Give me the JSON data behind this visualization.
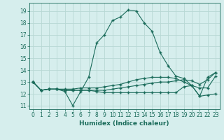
{
  "xlabel": "Humidex (Indice chaleur)",
  "bg_color": "#d6eeed",
  "grid_color": "#b8d8d4",
  "line_color": "#1a6b5a",
  "xlim": [
    -0.5,
    23.5
  ],
  "ylim": [
    10.7,
    19.7
  ],
  "yticks": [
    11,
    12,
    13,
    14,
    15,
    16,
    17,
    18,
    19
  ],
  "xticks": [
    0,
    1,
    2,
    3,
    4,
    5,
    6,
    7,
    8,
    9,
    10,
    11,
    12,
    13,
    14,
    15,
    16,
    17,
    18,
    19,
    20,
    21,
    22,
    23
  ],
  "line1_x": [
    0,
    1,
    2,
    3,
    4,
    5,
    6,
    7,
    8,
    9,
    10,
    11,
    12,
    13,
    14,
    15,
    16,
    17,
    18,
    19,
    20,
    21,
    22,
    23
  ],
  "line1_y": [
    13.0,
    12.3,
    12.4,
    12.4,
    12.2,
    11.0,
    12.2,
    13.4,
    16.3,
    17.0,
    18.2,
    18.5,
    19.1,
    19.0,
    18.0,
    17.3,
    15.5,
    14.4,
    13.5,
    13.3,
    12.7,
    11.8,
    13.4,
    13.8
  ],
  "line2_x": [
    0,
    1,
    2,
    3,
    4,
    5,
    6,
    7,
    8,
    9,
    10,
    11,
    12,
    13,
    14,
    15,
    16,
    17,
    18,
    19,
    20,
    21,
    22,
    23
  ],
  "line2_y": [
    13.0,
    12.3,
    12.4,
    12.4,
    12.4,
    12.4,
    12.5,
    12.5,
    12.5,
    12.6,
    12.7,
    12.8,
    13.0,
    13.2,
    13.3,
    13.4,
    13.4,
    13.4,
    13.3,
    13.0,
    12.7,
    12.5,
    12.5,
    13.5
  ],
  "line3_x": [
    0,
    1,
    2,
    3,
    4,
    5,
    6,
    7,
    8,
    9,
    10,
    11,
    12,
    13,
    14,
    15,
    16,
    17,
    18,
    19,
    20,
    21,
    22,
    23
  ],
  "line3_y": [
    13.0,
    12.3,
    12.4,
    12.4,
    12.3,
    12.3,
    12.3,
    12.3,
    12.3,
    12.3,
    12.4,
    12.5,
    12.6,
    12.7,
    12.8,
    12.9,
    13.0,
    13.0,
    13.1,
    13.2,
    13.1,
    12.8,
    13.2,
    13.8
  ],
  "line4_x": [
    0,
    1,
    2,
    3,
    4,
    5,
    6,
    7,
    8,
    9,
    10,
    11,
    12,
    13,
    14,
    15,
    16,
    17,
    18,
    19,
    20,
    21,
    22,
    23
  ],
  "line4_y": [
    13.0,
    12.3,
    12.4,
    12.4,
    12.3,
    12.3,
    12.3,
    12.3,
    12.2,
    12.1,
    12.1,
    12.1,
    12.1,
    12.1,
    12.1,
    12.1,
    12.1,
    12.1,
    12.1,
    12.6,
    12.7,
    11.8,
    11.9,
    12.0
  ]
}
